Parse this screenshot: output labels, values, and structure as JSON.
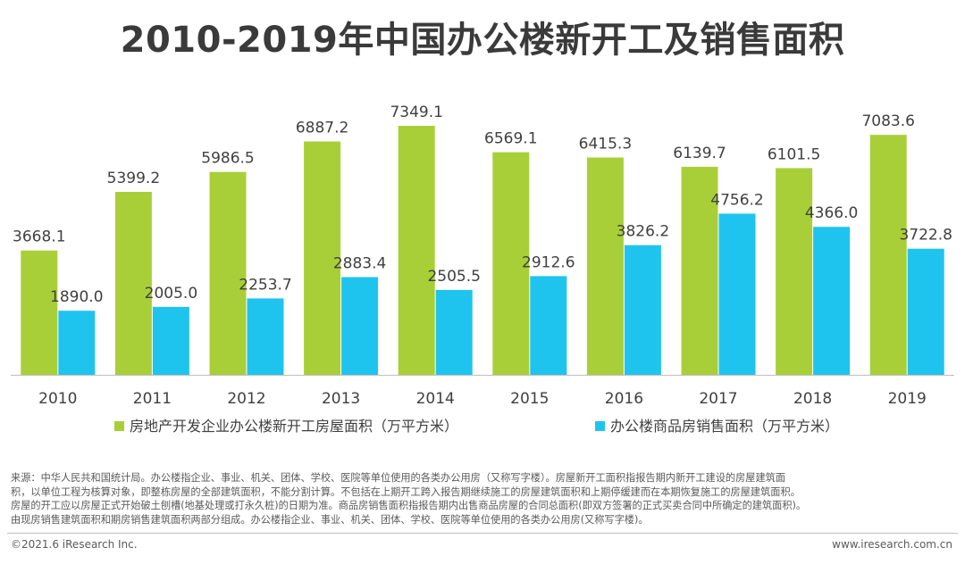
{
  "title": "2010-2019年中国办公楼新开工及销售面积",
  "chart_data": {
    "type": "bar",
    "title": "2010-2019年中国办公楼新开工及销售面积",
    "categories": [
      "2010",
      "2011",
      "2012",
      "2013",
      "2014",
      "2015",
      "2016",
      "2017",
      "2018",
      "2019"
    ],
    "series": [
      {
        "name": "房地产开发企业办公楼新开工房屋面积（万平方米）",
        "color": "#a9cf38",
        "values": [
          3668.1,
          5399.2,
          5986.5,
          6887.2,
          7349.1,
          6569.1,
          6415.3,
          6139.7,
          6101.5,
          7083.6
        ],
        "labels": [
          "3668.1",
          "5399.2",
          "5986.5",
          "6887.2",
          "7349.1",
          "6569.1",
          "6415.3",
          "6139.7",
          "6101.5",
          "7083.6"
        ]
      },
      {
        "name": "办公楼商品房销售面积（万平方米）",
        "color": "#1fc4ee",
        "values": [
          1890.0,
          2005.0,
          2253.7,
          2883.4,
          2505.5,
          2912.6,
          3826.2,
          4756.2,
          4366.0,
          3722.8
        ],
        "labels": [
          "1890.0",
          "2005.0",
          "2253.7",
          "2883.4",
          "2505.5",
          "2912.6",
          "3826.2",
          "4756.2",
          "4366.0",
          "3722.8"
        ]
      }
    ],
    "xlabel": "",
    "ylabel": "",
    "ylim": [
      0,
      7349.1
    ],
    "grid": false,
    "legend": "bottom"
  },
  "footnote": {
    "lines": [
      "来源：中华人民共和国统计局。办公楼指企业、事业、机关、团体、学校、医院等单位使用的各类办公用房（又称写字楼）。房屋新开工面积指报告期内新开工建设的房屋建筑面",
      "积，以单位工程为核算对象，即整栋房屋的全部建筑面积，不能分割计算。不包括在上期开工跨入报告期继续施工的房屋建筑面积和上期停缓建而在本期恢复施工的房屋建筑面积。",
      "房屋的开工应以房屋正式开始破土刨槽(地基处理或打永久桩)的日期为准。商品房销售面积指报告期内出售商品房屋的合同总面积(即双方签署的正式买卖合同中所确定的建筑面积)。",
      "由现房销售建筑面积和期房销售建筑面积两部分组成。办公楼指企业、事业、机关、团体、学校、医院等单位使用的各类办公用房(又称写字楼)。"
    ]
  },
  "copyright": "©2021.6 iResearch Inc.",
  "website": "www.iresearch.com.cn"
}
